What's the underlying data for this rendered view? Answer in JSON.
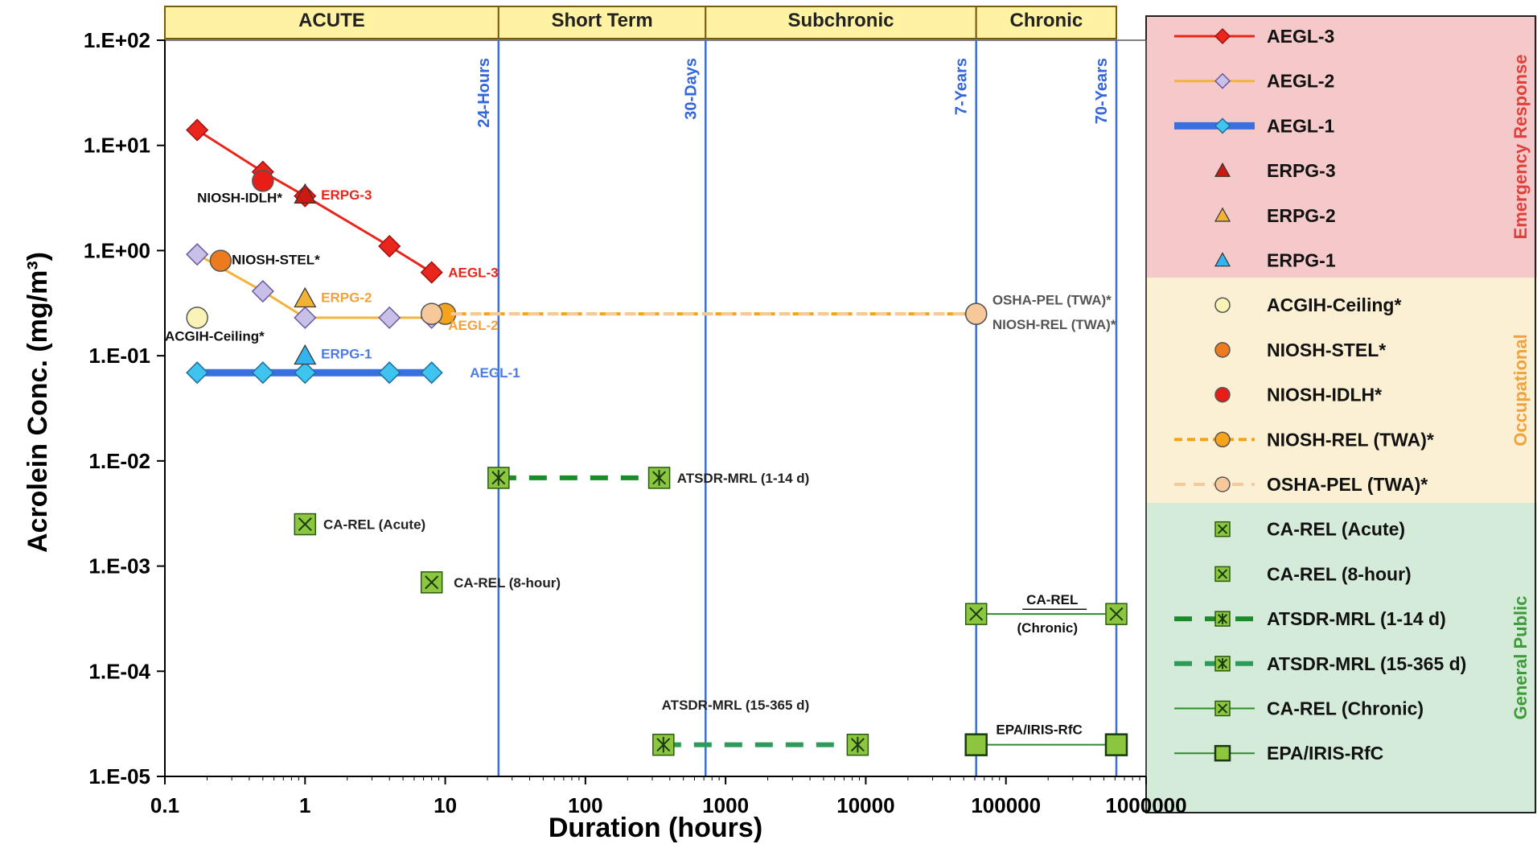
{
  "chart_data": {
    "type": "scatter",
    "xlabel": "Duration (hours)",
    "ylabel": "Acrolein Conc. (mg/m³)",
    "x_scale": "log",
    "y_scale": "log",
    "xlim": [
      0.1,
      1000000
    ],
    "ylim": [
      1e-05,
      100
    ],
    "x_ticks": [
      "0.1",
      "1",
      "10",
      "100",
      "1000",
      "10000",
      "100000",
      "1000000"
    ],
    "y_ticks": [
      "1.E-05",
      "1.E-04",
      "1.E-03",
      "1.E-02",
      "1.E-01",
      "1.E+00",
      "1.E+01",
      "1.E+02"
    ],
    "phase_bands": [
      {
        "label": "ACUTE",
        "from": 0.1,
        "to": 24
      },
      {
        "label": "Short Term",
        "from": 24,
        "to": 720
      },
      {
        "label": "Subchronic",
        "from": 720,
        "to": 61320
      },
      {
        "label": "Chronic",
        "from": 61320,
        "to": 613200
      }
    ],
    "vertical_lines": [
      {
        "x": 24,
        "label": "24-Hours"
      },
      {
        "x": 720,
        "label": "30-Days"
      },
      {
        "x": 61320,
        "label": "7-Years"
      },
      {
        "x": 613200,
        "label": "70-Years"
      }
    ],
    "legend_groups": [
      {
        "label": "Emergency Response",
        "color": "#f5c9c9",
        "text_color": "#e0403a"
      },
      {
        "label": "Occupational",
        "color": "#fbf0d3",
        "text_color": "#f2a23a"
      },
      {
        "label": "General Public",
        "color": "#d4ebd9",
        "text_color": "#3f9a3a"
      }
    ],
    "series": [
      {
        "name": "AEGL-3",
        "group": 0,
        "color": "#e8261c",
        "line": "solid",
        "marker": "diamond",
        "x": [
          0.17,
          0.5,
          1,
          4,
          8
        ],
        "y": [
          14,
          5.6,
          3.3,
          1.1,
          0.62
        ]
      },
      {
        "name": "AEGL-2",
        "group": 0,
        "color": "#f3b43a",
        "line": "solid",
        "marker": "diamond-open",
        "x": [
          0.17,
          0.5,
          1,
          4,
          8
        ],
        "y": [
          0.92,
          0.41,
          0.23,
          0.23,
          0.23
        ]
      },
      {
        "name": "AEGL-1",
        "group": 0,
        "color": "#3a6fe0",
        "line": "thick",
        "marker": "diamond-cyan",
        "x": [
          0.17,
          0.5,
          1,
          4,
          8
        ],
        "y": [
          0.069,
          0.069,
          0.069,
          0.069,
          0.069
        ]
      },
      {
        "name": "ERPG-3",
        "group": 0,
        "color": "#cc1a12",
        "line": "none",
        "marker": "triangle",
        "x": [
          1
        ],
        "y": [
          3.4
        ]
      },
      {
        "name": "ERPG-2",
        "group": 0,
        "color": "#f2b233",
        "line": "none",
        "marker": "triangle",
        "x": [
          1
        ],
        "y": [
          0.35
        ]
      },
      {
        "name": "ERPG-1",
        "group": 0,
        "color": "#33b3f0",
        "line": "none",
        "marker": "triangle",
        "x": [
          1
        ],
        "y": [
          0.1
        ]
      },
      {
        "name": "ACGIH-Ceiling*",
        "group": 1,
        "color": "#fbf3b6",
        "line": "none",
        "marker": "circle",
        "x": [
          0.17
        ],
        "y": [
          0.23
        ]
      },
      {
        "name": "NIOSH-STEL*",
        "group": 1,
        "color": "#ee7a1e",
        "line": "none",
        "marker": "circle",
        "x": [
          0.25
        ],
        "y": [
          0.8
        ]
      },
      {
        "name": "NIOSH-IDLH*",
        "group": 1,
        "color": "#e81d17",
        "line": "none",
        "marker": "circle",
        "x": [
          0.5
        ],
        "y": [
          4.6
        ]
      },
      {
        "name": "NIOSH-REL (TWA)*",
        "group": 1,
        "color": "#f5a31a",
        "line": "dotted",
        "marker": "circle",
        "x": [
          10,
          61320
        ],
        "y": [
          0.25,
          0.25
        ]
      },
      {
        "name": "OSHA-PEL (TWA)*",
        "group": 1,
        "color": "#f7c99a",
        "line": "dashed-light",
        "marker": "circle",
        "x": [
          8,
          61320
        ],
        "y": [
          0.25,
          0.25
        ]
      },
      {
        "name": "CA-REL (Acute)",
        "group": 2,
        "color": "#8cc63f",
        "line": "none",
        "marker": "square-x",
        "x": [
          1
        ],
        "y": [
          0.0025
        ]
      },
      {
        "name": "CA-REL (8-hour)",
        "group": 2,
        "color": "#8cc63f",
        "line": "none",
        "marker": "square-x",
        "x": [
          8
        ],
        "y": [
          0.0007
        ]
      },
      {
        "name": "ATSDR-MRL (1-14 d)",
        "group": 2,
        "color": "#1a8a2a",
        "line": "dashed",
        "marker": "square-star",
        "x": [
          24,
          336
        ],
        "y": [
          0.0069,
          0.0069
        ]
      },
      {
        "name": "ATSDR-MRL (15-365 d)",
        "group": 2,
        "color": "#2e9a5a",
        "line": "dashed",
        "marker": "square-star",
        "x": [
          360,
          8760
        ],
        "y": [
          2e-05,
          2e-05
        ]
      },
      {
        "name": "CA-REL (Chronic)",
        "group": 2,
        "color": "#2e8b2e",
        "line": "solid-thin",
        "marker": "square-x",
        "x": [
          61320,
          613200
        ],
        "y": [
          0.00035,
          0.00035
        ]
      },
      {
        "name": "EPA/IRIS-RfC",
        "group": 2,
        "color": "#2e8b2e",
        "line": "solid-thin",
        "marker": "square",
        "x": [
          61320,
          613200
        ],
        "y": [
          2e-05,
          2e-05
        ]
      }
    ],
    "annotations": [
      {
        "text": "NIOSH-IDLH*",
        "x": 0.17,
        "y": 3.2,
        "color": "#111111"
      },
      {
        "text": "ERPG-3",
        "x": 1.3,
        "y": 3.4,
        "color": "#e8261c"
      },
      {
        "text": "NIOSH-STEL*",
        "x": 0.3,
        "y": 0.82,
        "color": "#111111"
      },
      {
        "text": "AEGL-3",
        "x": 10.5,
        "y": 0.62,
        "color": "#e8261c"
      },
      {
        "text": "ERPG-2",
        "x": 1.3,
        "y": 0.36,
        "color": "#f2a23a"
      },
      {
        "text": "OSHA-PEL (TWA)*",
        "x": 80000,
        "y": 0.34,
        "color": "#555555"
      },
      {
        "text": "NIOSH-REL (TWA)*",
        "x": 80000,
        "y": 0.2,
        "color": "#555555"
      },
      {
        "text": "ACGIH-Ceiling*",
        "x": 0.1,
        "y": 0.155,
        "color": "#111111"
      },
      {
        "text": "AEGL-2",
        "x": 10.5,
        "y": 0.195,
        "color": "#f2a23a"
      },
      {
        "text": "ERPG-1",
        "x": 1.3,
        "y": 0.105,
        "color": "#4a7be6"
      },
      {
        "text": "AEGL-1",
        "x": 15,
        "y": 0.069,
        "color": "#4a7be6"
      },
      {
        "text": "ATSDR-MRL (1-14 d)",
        "x": 450,
        "y": 0.0069,
        "color": "#222222"
      },
      {
        "text": "CA-REL (Acute)",
        "x": 1.35,
        "y": 0.0025,
        "color": "#222222"
      },
      {
        "text": "CA-REL (8-hour)",
        "x": 11.5,
        "y": 0.0007,
        "color": "#222222"
      },
      {
        "text": "CA-REL",
        "x": 140000,
        "y": 0.00048,
        "color": "#111111"
      },
      {
        "text": "(Chronic)",
        "x": 120000,
        "y": 0.00026,
        "color": "#111111"
      },
      {
        "text": "ATSDR-MRL (15-365 d)",
        "x": 350,
        "y": 4.8e-05,
        "color": "#222222"
      },
      {
        "text": "EPA/IRIS-RfC",
        "x": 85000,
        "y": 2.8e-05,
        "color": "#111111"
      }
    ]
  }
}
